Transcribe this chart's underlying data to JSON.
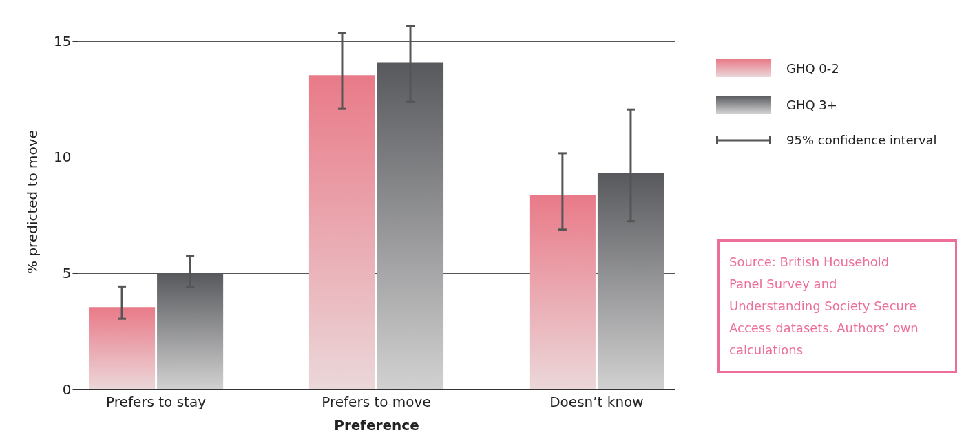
{
  "chart_data": {
    "type": "bar",
    "xlabel": "Preference",
    "ylabel": "% predicted to move",
    "categories": [
      "Prefers to stay",
      "Prefers to move",
      "Doesn’t know"
    ],
    "series": [
      {
        "name": "GHQ 0-2",
        "color": "#e97a88",
        "values": [
          3.55,
          13.55,
          8.4
        ],
        "errors": [
          [
            3.05,
            4.44
          ],
          [
            12.1,
            15.38
          ],
          [
            6.89,
            10.18
          ]
        ]
      },
      {
        "name": "GHQ 3+",
        "color": "#58595d",
        "values": [
          5.0,
          14.11,
          9.32
        ],
        "errors": [
          [
            4.41,
            5.77
          ],
          [
            12.4,
            15.68
          ],
          [
            7.25,
            12.07
          ]
        ]
      }
    ],
    "ylim": [
      0,
      16.2
    ],
    "yticks": [
      0,
      5,
      10,
      15
    ],
    "grid": "y",
    "legend": "right",
    "annotations": [
      "95% confidence interval",
      "Source: British Household Panel Survey and Understanding Society Secure Access datasets. Authors’ own calculations"
    ]
  }
}
